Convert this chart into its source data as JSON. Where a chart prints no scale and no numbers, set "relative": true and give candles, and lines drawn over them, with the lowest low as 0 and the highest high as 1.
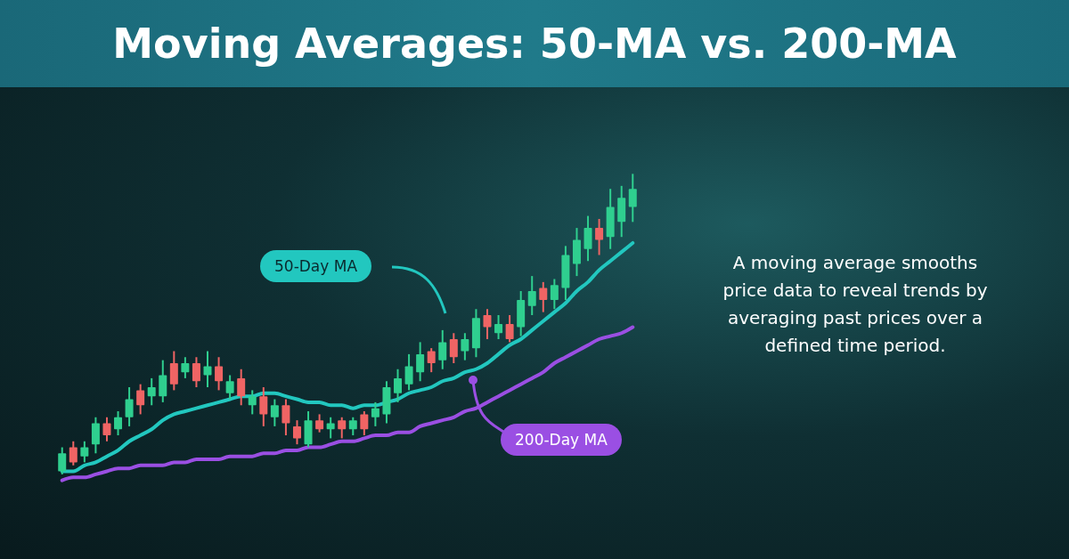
{
  "chart_data": {
    "type": "candlestick",
    "title": "Moving Averages: 50-MA vs. 200-MA",
    "annotations": [
      "A moving average smooths price data to reveal trends by averaging past prices over a defined time period."
    ],
    "relative": true,
    "categories": [
      null,
      null,
      null,
      null,
      null,
      null,
      null,
      null,
      null,
      null,
      null,
      null,
      null,
      null,
      null,
      null,
      null,
      null,
      null,
      null,
      null,
      null,
      null,
      null,
      null,
      null,
      null,
      null,
      null,
      null,
      null,
      null,
      null,
      null,
      null,
      null,
      null,
      null,
      null,
      null,
      null,
      null,
      null,
      null,
      null,
      null,
      null,
      null,
      null,
      null,
      null,
      null
    ],
    "ohlc": [
      [
        0.01,
        0.09,
        0,
        0.07
      ],
      [
        0.09,
        0.11,
        0.03,
        0.04
      ],
      [
        0.06,
        0.11,
        0.04,
        0.09
      ],
      [
        0.1,
        0.19,
        0.07,
        0.17
      ],
      [
        0.17,
        0.19,
        0.11,
        0.13
      ],
      [
        0.15,
        0.21,
        0.13,
        0.19
      ],
      [
        0.19,
        0.29,
        0.16,
        0.25
      ],
      [
        0.28,
        0.3,
        0.2,
        0.23
      ],
      [
        0.26,
        0.32,
        0.23,
        0.29
      ],
      [
        0.26,
        0.38,
        0.24,
        0.33
      ],
      [
        0.37,
        0.41,
        0.28,
        0.3
      ],
      [
        0.34,
        0.39,
        0.32,
        0.37
      ],
      [
        0.37,
        0.39,
        0.29,
        0.31
      ],
      [
        0.33,
        0.41,
        0.29,
        0.36
      ],
      [
        0.36,
        0.39,
        0.28,
        0.31
      ],
      [
        0.27,
        0.33,
        0.25,
        0.31
      ],
      [
        0.32,
        0.35,
        0.23,
        0.26
      ],
      [
        0.23,
        0.28,
        0.2,
        0.26
      ],
      [
        0.26,
        0.29,
        0.16,
        0.2
      ],
      [
        0.19,
        0.25,
        0.16,
        0.23
      ],
      [
        0.23,
        0.25,
        0.13,
        0.17
      ],
      [
        0.16,
        0.18,
        0.1,
        0.12
      ],
      [
        0.1,
        0.21,
        0.09,
        0.18
      ],
      [
        0.18,
        0.2,
        0.14,
        0.15
      ],
      [
        0.15,
        0.19,
        0.12,
        0.17
      ],
      [
        0.18,
        0.19,
        0.12,
        0.15
      ],
      [
        0.15,
        0.19,
        0.13,
        0.18
      ],
      [
        0.2,
        0.21,
        0.13,
        0.15
      ],
      [
        0.19,
        0.24,
        0.16,
        0.22
      ],
      [
        0.2,
        0.31,
        0.17,
        0.29
      ],
      [
        0.27,
        0.35,
        0.24,
        0.32
      ],
      [
        0.3,
        0.4,
        0.28,
        0.36
      ],
      [
        0.34,
        0.44,
        0.31,
        0.4
      ],
      [
        0.41,
        0.42,
        0.34,
        0.37
      ],
      [
        0.38,
        0.48,
        0.35,
        0.44
      ],
      [
        0.45,
        0.47,
        0.37,
        0.39
      ],
      [
        0.41,
        0.47,
        0.38,
        0.45
      ],
      [
        0.42,
        0.55,
        0.39,
        0.52
      ],
      [
        0.53,
        0.55,
        0.45,
        0.49
      ],
      [
        0.47,
        0.53,
        0.45,
        0.5
      ],
      [
        0.5,
        0.53,
        0.44,
        0.45
      ],
      [
        0.49,
        0.61,
        0.46,
        0.58
      ],
      [
        0.56,
        0.66,
        0.53,
        0.61
      ],
      [
        0.62,
        0.64,
        0.54,
        0.58
      ],
      [
        0.58,
        0.65,
        0.55,
        0.63
      ],
      [
        0.62,
        0.76,
        0.58,
        0.73
      ],
      [
        0.7,
        0.82,
        0.66,
        0.78
      ],
      [
        0.75,
        0.86,
        0.71,
        0.82
      ],
      [
        0.82,
        0.85,
        0.73,
        0.78
      ],
      [
        0.79,
        0.95,
        0.75,
        0.89
      ],
      [
        0.84,
        0.96,
        0.79,
        0.92
      ],
      [
        0.89,
        1,
        0.84,
        0.95
      ]
    ],
    "colors": [
      "#2fcf8f",
      "#ef6464",
      "#2fcf8f",
      "#2fcf8f",
      "#ef6464",
      "#2fcf8f",
      "#2fcf8f",
      "#ef6464",
      "#2fcf8f",
      "#2fcf8f",
      "#ef6464",
      "#2fcf8f",
      "#ef6464",
      "#2fcf8f",
      "#ef6464",
      "#2fcf8f",
      "#ef6464",
      "#2fcf8f",
      "#ef6464",
      "#2fcf8f",
      "#ef6464",
      "#ef6464",
      "#2fcf8f",
      "#ef6464",
      "#2fcf8f",
      "#ef6464",
      "#2fcf8f",
      "#ef6464",
      "#2fcf8f",
      "#2fcf8f",
      "#2fcf8f",
      "#2fcf8f",
      "#2fcf8f",
      "#ef6464",
      "#2fcf8f",
      "#ef6464",
      "#2fcf8f",
      "#2fcf8f",
      "#ef6464",
      "#2fcf8f",
      "#ef6464",
      "#2fcf8f",
      "#2fcf8f",
      "#ef6464",
      "#2fcf8f",
      "#2fcf8f",
      "#2fcf8f",
      "#2fcf8f",
      "#ef6464",
      "#2fcf8f",
      "#2fcf8f",
      "#2fcf8f"
    ],
    "series": [
      {
        "type": "line",
        "name": "50-Day MA",
        "color": "#22c7bf",
        "values": [
          0.01,
          0.01,
          0.03,
          0.04,
          0.06,
          0.08,
          0.11,
          0.13,
          0.15,
          0.18,
          0.2,
          0.21,
          0.22,
          0.23,
          0.24,
          0.25,
          0.26,
          0.26,
          0.27,
          0.27,
          0.26,
          0.25,
          0.24,
          0.24,
          0.23,
          0.23,
          0.22,
          0.23,
          0.23,
          0.24,
          0.25,
          0.27,
          0.28,
          0.29,
          0.31,
          0.32,
          0.34,
          0.35,
          0.37,
          0.4,
          0.43,
          0.45,
          0.48,
          0.51,
          0.54,
          0.57,
          0.61,
          0.64,
          0.68,
          0.71,
          0.74,
          0.77
        ]
      },
      {
        "type": "line",
        "name": "200-Day MA",
        "color": "#9a4fe3",
        "values": [
          -0.02,
          -0.01,
          -0.01,
          0.0,
          0.01,
          0.02,
          0.02,
          0.03,
          0.03,
          0.03,
          0.04,
          0.04,
          0.05,
          0.05,
          0.05,
          0.06,
          0.06,
          0.06,
          0.07,
          0.07,
          0.08,
          0.08,
          0.09,
          0.09,
          0.1,
          0.11,
          0.11,
          0.12,
          0.13,
          0.13,
          0.14,
          0.14,
          0.16,
          0.17,
          0.18,
          0.19,
          0.21,
          0.22,
          0.24,
          0.26,
          0.28,
          0.3,
          0.32,
          0.34,
          0.37,
          0.39,
          0.41,
          0.43,
          0.45,
          0.46,
          0.47,
          0.49
        ]
      }
    ]
  }
}
